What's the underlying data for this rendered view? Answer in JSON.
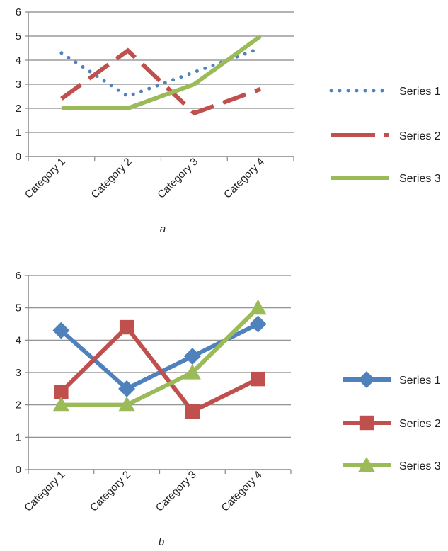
{
  "colors": {
    "series1": "#4f81bd",
    "series2": "#c0504d",
    "series3": "#9bbb59",
    "grid": "#868686",
    "axis": "#868686"
  },
  "chart_data": [
    {
      "type": "line",
      "panel_label": "a",
      "categories": [
        "Category 1",
        "Category 2",
        "Category 3",
        "Category 4"
      ],
      "y_ticks": [
        "0",
        "1",
        "2",
        "3",
        "4",
        "5",
        "6"
      ],
      "ylim": [
        0,
        6
      ],
      "grid": true,
      "legend": "right",
      "markers": false,
      "series": [
        {
          "name": "Series 1",
          "values": [
            4.3,
            2.5,
            3.5,
            4.5
          ],
          "color": "#4f81bd",
          "line_style": "dotted"
        },
        {
          "name": "Series 2",
          "values": [
            2.4,
            4.4,
            1.8,
            2.8
          ],
          "color": "#c0504d",
          "line_style": "dashed"
        },
        {
          "name": "Series 3",
          "values": [
            2,
            2,
            3,
            5
          ],
          "color": "#9bbb59",
          "line_style": "solid"
        }
      ]
    },
    {
      "type": "line",
      "panel_label": "b",
      "categories": [
        "Category 1",
        "Category 2",
        "Category 3",
        "Category 4"
      ],
      "y_ticks": [
        "0",
        "1",
        "2",
        "3",
        "4",
        "5",
        "6"
      ],
      "ylim": [
        0,
        6
      ],
      "grid": true,
      "legend": "right",
      "markers": true,
      "series": [
        {
          "name": "Series 1",
          "values": [
            4.3,
            2.5,
            3.5,
            4.5
          ],
          "color": "#4f81bd",
          "marker": "diamond"
        },
        {
          "name": "Series 2",
          "values": [
            2.4,
            4.4,
            1.8,
            2.8
          ],
          "color": "#c0504d",
          "marker": "square"
        },
        {
          "name": "Series 3",
          "values": [
            2,
            2,
            3,
            5
          ],
          "color": "#9bbb59",
          "marker": "triangle"
        }
      ]
    }
  ]
}
